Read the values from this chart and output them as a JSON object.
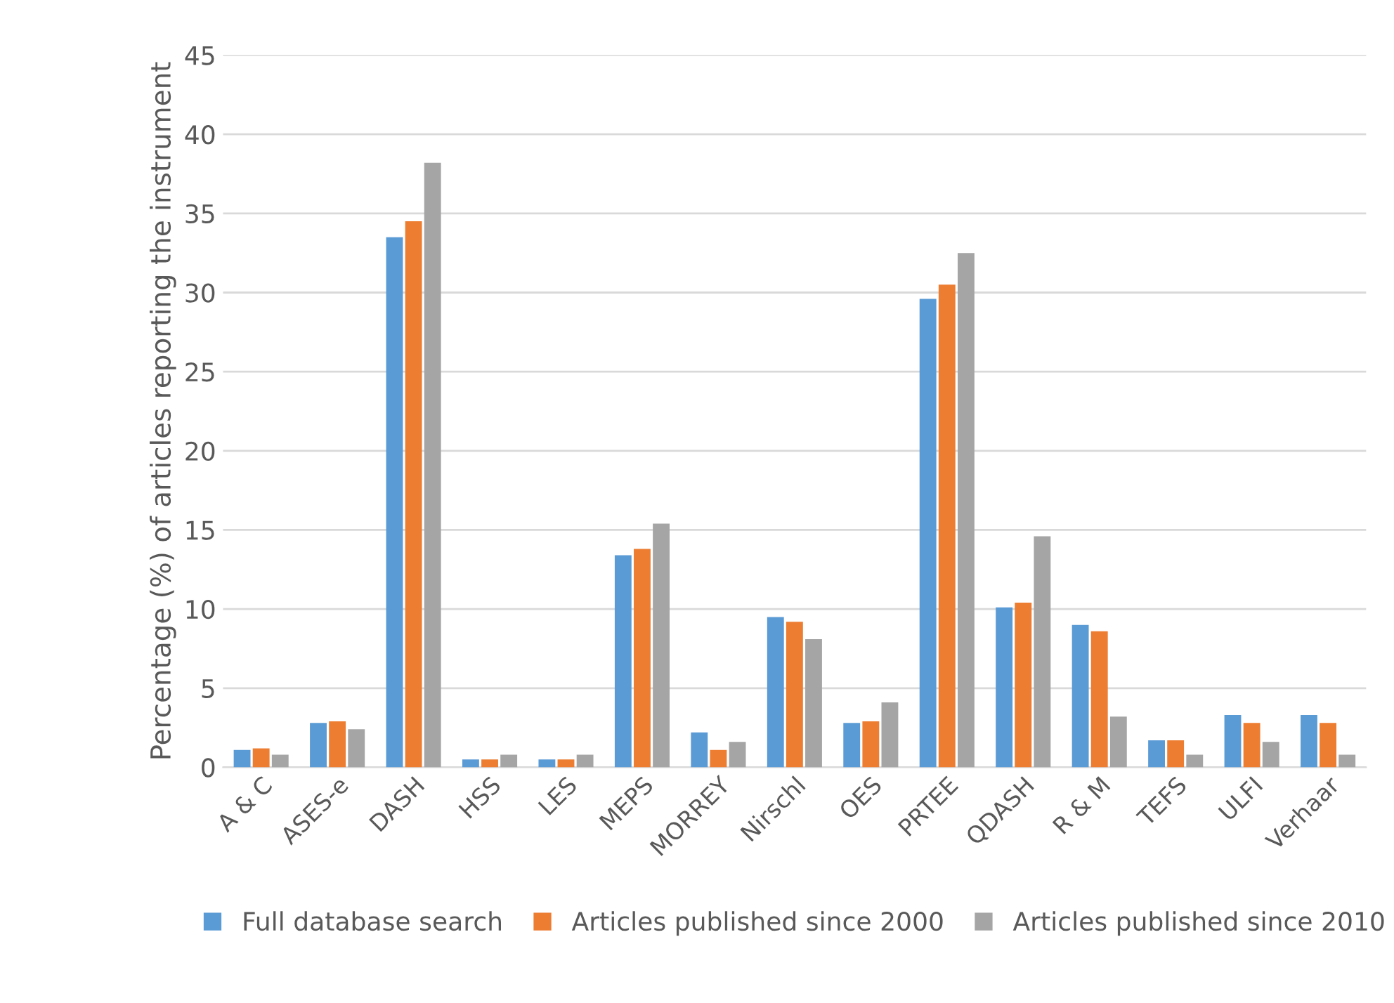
{
  "chart_data": {
    "type": "bar",
    "ylabel": "Percentage (%) of articles reporting the instrument",
    "categories": [
      "A & C",
      "ASES-e",
      "DASH",
      "HSS",
      "LES",
      "MEPS",
      "MORREY",
      "Nirschl",
      "OES",
      "PRTEE",
      "QDASH",
      "R & M",
      "TEFS",
      "ULFI",
      "Verhaar"
    ],
    "series": [
      {
        "name": "Full database search",
        "color": "#5b9bd5",
        "values": [
          1.1,
          2.8,
          33.5,
          0.5,
          0.5,
          13.4,
          2.2,
          9.5,
          2.8,
          29.6,
          10.1,
          9.0,
          1.7,
          3.3,
          3.3
        ]
      },
      {
        "name": "Articles published since 2000",
        "color": "#ed7d31",
        "values": [
          1.2,
          2.9,
          34.5,
          0.5,
          0.5,
          13.8,
          1.1,
          9.2,
          2.9,
          30.5,
          10.4,
          8.6,
          1.7,
          2.8,
          2.8
        ]
      },
      {
        "name": "Articles published since 2010",
        "color": "#a5a5a5",
        "values": [
          0.8,
          2.4,
          38.2,
          0.8,
          0.8,
          15.4,
          1.6,
          8.1,
          4.1,
          32.5,
          14.6,
          3.2,
          0.8,
          1.6,
          0.8
        ]
      }
    ],
    "ylim": [
      0,
      45
    ],
    "yticks": [
      0,
      5,
      10,
      15,
      20,
      25,
      30,
      35,
      40,
      45
    ],
    "grid": "y",
    "legend": "bottom"
  }
}
